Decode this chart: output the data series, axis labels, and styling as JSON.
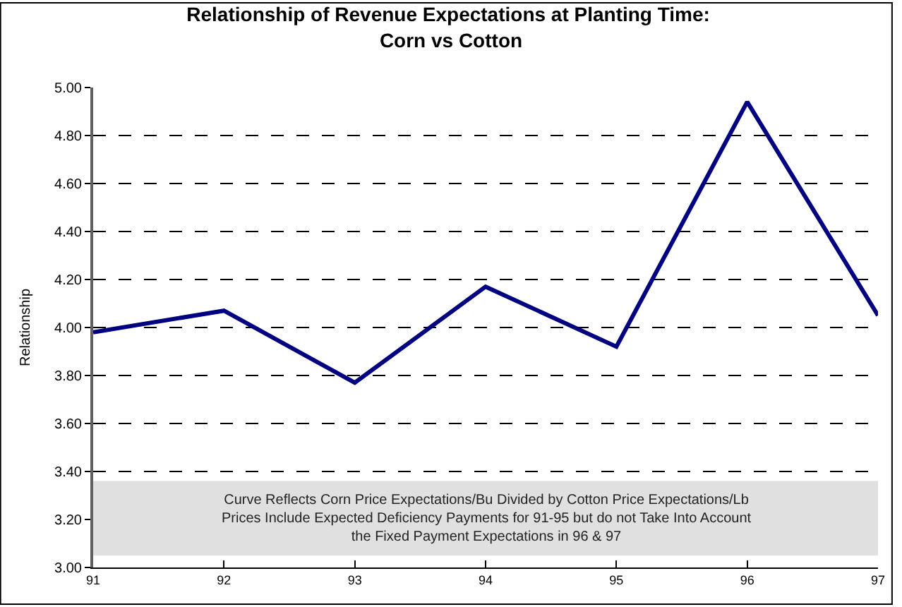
{
  "chart_data": {
    "type": "line",
    "title": "Relationship of Revenue Expectations at Planting Time:  Corn vs Cotton",
    "ylabel": "Relationship",
    "x": [
      91,
      92,
      93,
      94,
      95,
      96,
      97
    ],
    "series": [
      {
        "color": "#000080",
        "values": [
          3.98,
          4.07,
          3.77,
          4.17,
          3.92,
          4.94,
          4.05
        ]
      }
    ],
    "xlim": [
      91,
      97
    ],
    "xticks": [
      91,
      92,
      93,
      94,
      95,
      96,
      97
    ],
    "ylim": [
      3.0,
      5.0
    ],
    "yticks": [
      {
        "value": 3.0,
        "label": "3.00"
      },
      {
        "value": 3.2,
        "label": "3.20"
      },
      {
        "value": 3.4,
        "label": "3.40"
      },
      {
        "value": 3.6,
        "label": "3.60"
      },
      {
        "value": 3.8,
        "label": "3.80"
      },
      {
        "value": 4.0,
        "label": "4.00"
      },
      {
        "value": 4.2,
        "label": "4.20"
      },
      {
        "value": 4.4,
        "label": "4.40"
      },
      {
        "value": 4.6,
        "label": "4.60"
      },
      {
        "value": 4.8,
        "label": "4.80"
      },
      {
        "value": 5.0,
        "label": "5.00"
      }
    ],
    "grid": "y",
    "marker": "none",
    "line_style": "solid",
    "bands": [
      {
        "axis": "y",
        "from": 3.05,
        "to": 3.36,
        "color": "#e0e0e0",
        "label": "Curve Reflects Corn Price Expectations/Bu Divided by Cotton Price Expectations/Lb\nPrices Include Expected Deficiency Payments for 91-95 but do not Take Into Account\nthe Fixed Payment Expectations in 96 & 97"
      }
    ]
  }
}
